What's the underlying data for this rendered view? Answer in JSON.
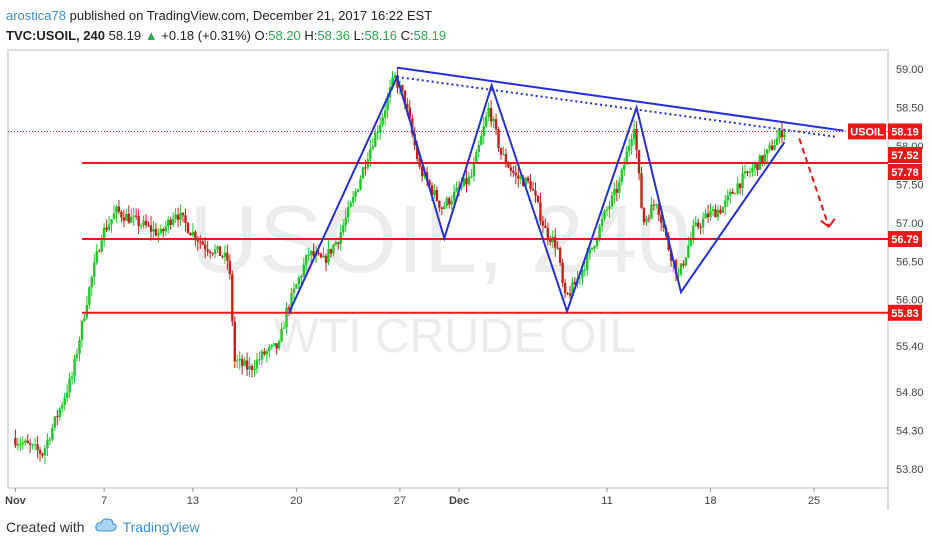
{
  "header": {
    "author": "arostica78",
    "published_text": "published on TradingView.com, December 21, 2017 16:22 EST",
    "symbol": "TVC:USOIL, 240",
    "last": "58.19",
    "change": "+0.18 (+0.31%)",
    "o_label": "O:",
    "o_value": "58.20",
    "h_label": "H:",
    "h_value": "58.36",
    "l_label": "L:",
    "l_value": "58.16",
    "c_label": "C:",
    "c_value": "58.19"
  },
  "footer": {
    "created_with": "Created with",
    "brand": "TradingView"
  },
  "colors": {
    "up": "#22c52a",
    "down": "#c0221b",
    "level_line": "#e8191b",
    "pattern": "#2430d6",
    "label_bg": "#e8191b",
    "axis_text": "#444444"
  },
  "chart_data": {
    "type": "candlestick",
    "watermark_symbol": "USOIL, 240",
    "watermark_name": "WTI CRUDE OIL",
    "y_ticks": [
      53.8,
      54.3,
      54.8,
      55.4,
      56.0,
      56.5,
      57.0,
      57.5,
      58.0,
      58.5,
      59.0
    ],
    "y_tick_labels": [
      "53.80",
      "54.30",
      "54.80",
      "55.40",
      "56.00",
      "56.50",
      "57.00",
      "57.50",
      "58.00",
      "58.50",
      "59.00"
    ],
    "ylim": [
      53.55,
      59.25
    ],
    "x_tick_labels": [
      "Nov",
      "7",
      "13",
      "20",
      "27",
      "Dec",
      "11",
      "18",
      "25"
    ],
    "x_tick_days": [
      0,
      6,
      12,
      19,
      26,
      30,
      40,
      47,
      54
    ],
    "xlim_days": [
      -0.5,
      59
    ],
    "last_day": 52,
    "price_labels": [
      {
        "text": "USOIL",
        "value": 58.19
      },
      {
        "text": "58.19",
        "value": 58.19
      },
      {
        "text": "57.52",
        "value": 57.52
      },
      {
        "text": "57.78",
        "value": 57.78
      },
      {
        "text": "56.79",
        "value": 56.79
      },
      {
        "text": "55.83",
        "value": 55.83
      }
    ],
    "levels": [
      57.78,
      56.79,
      55.83
    ],
    "current_price": 58.19,
    "pattern_points": [
      {
        "day": 18.5,
        "price": 55.83
      },
      {
        "day": 25.8,
        "price": 58.9
      },
      {
        "day": 29.0,
        "price": 56.8
      },
      {
        "day": 32.2,
        "price": 58.79
      },
      {
        "day": 37.3,
        "price": 55.85
      },
      {
        "day": 42.0,
        "price": 58.5
      },
      {
        "day": 45.0,
        "price": 56.1
      },
      {
        "day": 52.0,
        "price": 58.05
      }
    ],
    "resistance_line": [
      {
        "day": 25.8,
        "price": 59.02
      },
      {
        "day": 56.0,
        "price": 58.2
      }
    ],
    "resistance_dotted": [
      {
        "day": 25.8,
        "price": 58.9
      },
      {
        "day": 55.5,
        "price": 58.12
      }
    ],
    "projection": [
      {
        "day": 53.0,
        "price": 58.1
      },
      {
        "day": 55.0,
        "price": 56.95
      }
    ],
    "key_points": [
      {
        "day": 0,
        "price": 54.2
      },
      {
        "day": 2,
        "price": 54.0
      },
      {
        "day": 4,
        "price": 55.0
      },
      {
        "day": 5,
        "price": 56.0
      },
      {
        "day": 6,
        "price": 56.85
      },
      {
        "day": 7,
        "price": 57.15
      },
      {
        "day": 8,
        "price": 57.05
      },
      {
        "day": 9,
        "price": 56.95
      },
      {
        "day": 10,
        "price": 56.85
      },
      {
        "day": 11,
        "price": 57.15
      },
      {
        "day": 12,
        "price": 56.9
      },
      {
        "day": 13,
        "price": 56.7
      },
      {
        "day": 14,
        "price": 56.6
      },
      {
        "day": 14.6,
        "price": 56.5
      },
      {
        "day": 15,
        "price": 55.2
      },
      {
        "day": 16,
        "price": 55.1
      },
      {
        "day": 17,
        "price": 55.3
      },
      {
        "day": 18,
        "price": 55.4
      },
      {
        "day": 18.5,
        "price": 55.85
      },
      {
        "day": 20,
        "price": 56.6
      },
      {
        "day": 21,
        "price": 56.5
      },
      {
        "day": 22,
        "price": 56.8
      },
      {
        "day": 23,
        "price": 57.3
      },
      {
        "day": 24,
        "price": 57.9
      },
      {
        "day": 25,
        "price": 58.4
      },
      {
        "day": 25.8,
        "price": 58.9
      },
      {
        "day": 26.5,
        "price": 58.6
      },
      {
        "day": 27.5,
        "price": 57.7
      },
      {
        "day": 29,
        "price": 57.2
      },
      {
        "day": 30,
        "price": 57.4
      },
      {
        "day": 31,
        "price": 57.6
      },
      {
        "day": 32.2,
        "price": 58.5
      },
      {
        "day": 33,
        "price": 57.9
      },
      {
        "day": 34,
        "price": 57.6
      },
      {
        "day": 35,
        "price": 57.5
      },
      {
        "day": 36,
        "price": 56.9
      },
      {
        "day": 36.8,
        "price": 56.7
      },
      {
        "day": 37.3,
        "price": 56.0
      },
      {
        "day": 38,
        "price": 56.2
      },
      {
        "day": 39,
        "price": 56.6
      },
      {
        "day": 40,
        "price": 57.1
      },
      {
        "day": 41,
        "price": 57.5
      },
      {
        "day": 42,
        "price": 58.3
      },
      {
        "day": 42.6,
        "price": 57.0
      },
      {
        "day": 43.5,
        "price": 57.3
      },
      {
        "day": 44.3,
        "price": 56.7
      },
      {
        "day": 45,
        "price": 56.3
      },
      {
        "day": 46,
        "price": 56.9
      },
      {
        "day": 47,
        "price": 57.1
      },
      {
        "day": 48,
        "price": 57.2
      },
      {
        "day": 49,
        "price": 57.5
      },
      {
        "day": 50,
        "price": 57.7
      },
      {
        "day": 51,
        "price": 57.9
      },
      {
        "day": 52,
        "price": 58.19
      }
    ]
  }
}
